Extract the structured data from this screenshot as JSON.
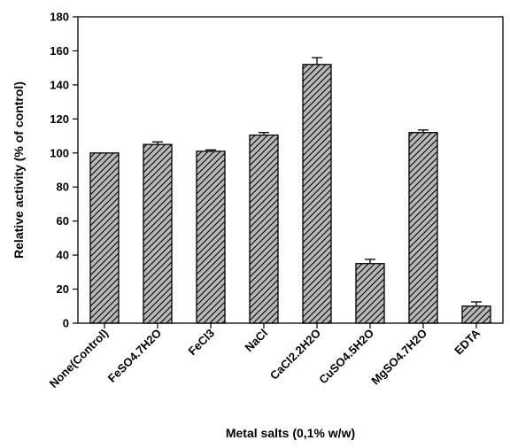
{
  "chart_data": {
    "type": "bar",
    "title": "",
    "xlabel": "Metal salts (0,1% w/w)",
    "ylabel": "Relative activity (% of control)",
    "ylim": [
      0,
      180
    ],
    "yticks": [
      0,
      20,
      40,
      60,
      80,
      100,
      120,
      140,
      160,
      180
    ],
    "categories": [
      "None(Control)",
      "FeSO4.7H2O",
      "FeCl3",
      "NaCl",
      "CaCl2.2H2O",
      "CuSO4.5H2O",
      "MgSO4.7H2O",
      "EDTA"
    ],
    "values": [
      100,
      105,
      101,
      110.5,
      152,
      35,
      112,
      10
    ],
    "errors": [
      0,
      1.5,
      0.8,
      1.5,
      4,
      2.5,
      1.5,
      2.5
    ],
    "grid": false,
    "legend": "none",
    "bar_fill": "diagonal-hatch",
    "bar_color": "#b8b8b8",
    "hatch_color": "#000000"
  }
}
